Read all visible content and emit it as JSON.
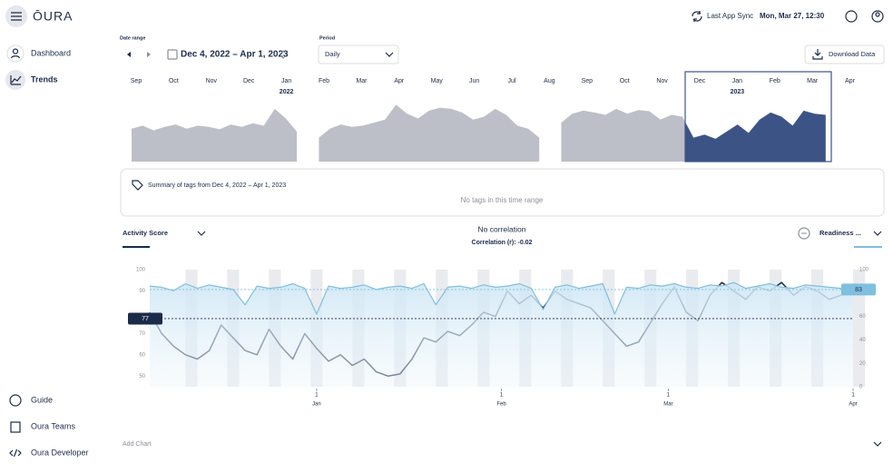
{
  "header": {
    "logo": "ŌURA",
    "sync_label": "Last App Sync",
    "sync_time": "Mon, Mar 27, 12:30"
  },
  "sidebar": {
    "top": [
      "Dashboard",
      "Trends"
    ],
    "bottom": [
      "Guide",
      "Oura Teams",
      "Oura Developer"
    ]
  },
  "controls": {
    "date_range_label": "Date range",
    "date_range": "Dec 4, 2022 – Apr 1, 2023",
    "period_label": "Period",
    "period": "Daily",
    "download": "Download Data"
  },
  "tags": {
    "title": "Summary of tags from Dec 4, 2022 – Apr 1, 2023",
    "empty": "No tags in this time range"
  },
  "add_chart": "Add Chart",
  "chart_data": [
    {
      "type": "area",
      "x_labels": [
        "Sep",
        "Oct",
        "Nov",
        "Dec",
        "Jan",
        "Feb",
        "Mar",
        "Apr",
        "May",
        "Jun",
        "Jul",
        "Aug",
        "Sep",
        "Oct",
        "Nov",
        "Dec",
        "Jan",
        "Feb",
        "Mar",
        "Apr"
      ],
      "years": [
        "2022",
        "2023"
      ],
      "color": "#bcbfc7",
      "selected_color": "#3c5485",
      "values": [
        55,
        60,
        52,
        58,
        62,
        55,
        60,
        58,
        54,
        62,
        58,
        64,
        60,
        88,
        72,
        50,
        null,
        40,
        55,
        62,
        58,
        60,
        65,
        70,
        95,
        80,
        72,
        85,
        90,
        88,
        82,
        70,
        75,
        88,
        78,
        60,
        55,
        40,
        null,
        65,
        80,
        85,
        82,
        78,
        88,
        80,
        86,
        84,
        70,
        78,
        75,
        40,
        45,
        38,
        50,
        62,
        48,
        70,
        82,
        75,
        60,
        85,
        80,
        78
      ]
    },
    {
      "type": "line",
      "title": "No correlation",
      "subtitle": "Correlation (r): -0.02",
      "x": [
        "2022-12-04",
        "2022-12-06",
        "2022-12-08",
        "2022-12-10",
        "2022-12-12",
        "2022-12-14",
        "2022-12-16",
        "2022-12-18",
        "2022-12-20",
        "2022-12-22",
        "2022-12-24",
        "2022-12-26",
        "2022-12-28",
        "2022-12-30",
        "2023-01-01",
        "2023-01-03",
        "2023-01-05",
        "2023-01-07",
        "2023-01-09",
        "2023-01-11",
        "2023-01-13",
        "2023-01-15",
        "2023-01-17",
        "2023-01-19",
        "2023-01-21",
        "2023-01-23",
        "2023-01-25",
        "2023-01-27",
        "2023-01-29",
        "2023-01-31",
        "2023-02-02",
        "2023-02-04",
        "2023-02-06",
        "2023-02-08",
        "2023-02-10",
        "2023-02-12",
        "2023-02-14",
        "2023-02-16",
        "2023-02-18",
        "2023-02-20",
        "2023-02-22",
        "2023-02-24",
        "2023-02-26",
        "2023-02-28",
        "2023-03-02",
        "2023-03-04",
        "2023-03-06",
        "2023-03-08",
        "2023-03-10",
        "2023-03-12",
        "2023-03-14",
        "2023-03-16",
        "2023-03-18",
        "2023-03-20",
        "2023-03-22",
        "2023-03-24",
        "2023-03-26",
        "2023-03-28",
        "2023-03-30",
        "2023-04-01"
      ],
      "xticks": [
        {
          "value": "2023-01-01",
          "label": "1"
        },
        {
          "value": "2023-02-01",
          "label": "1"
        },
        {
          "value": "2023-03-01",
          "label": "1"
        },
        {
          "value": "2023-04-01",
          "label": "1"
        }
      ],
      "xtick_months": [
        "Jan",
        "Feb",
        "Mar",
        "Apr"
      ],
      "ylim": [
        45,
        100
      ],
      "yticks": [
        50,
        60,
        70,
        90,
        100
      ],
      "y2lim": [
        0,
        100
      ],
      "y2ticks": [
        0,
        20,
        40,
        60,
        100
      ],
      "series": [
        {
          "name": "Activity Score",
          "color": "#1c2b4a",
          "average": 77,
          "values": [
            80,
            70,
            64,
            60,
            58,
            62,
            74,
            68,
            62,
            60,
            72,
            64,
            58,
            70,
            63,
            57,
            60,
            55,
            58,
            52,
            50,
            51,
            58,
            68,
            66,
            71,
            69,
            74,
            80,
            78,
            90,
            84,
            88,
            82,
            90,
            86,
            84,
            82,
            76,
            70,
            64,
            66,
            75,
            84,
            92,
            80,
            76,
            88,
            94,
            90,
            86,
            92,
            90,
            94,
            88,
            92,
            90,
            86,
            88,
            89
          ]
        },
        {
          "name": "Readiness ...",
          "color": "#7fbfe0",
          "axis": "y2",
          "average": 83,
          "values": [
            86,
            85,
            82,
            88,
            84,
            87,
            85,
            83,
            70,
            86,
            84,
            85,
            88,
            84,
            62,
            86,
            84,
            85,
            87,
            83,
            85,
            86,
            84,
            88,
            70,
            85,
            86,
            84,
            87,
            85,
            86,
            88,
            84,
            66,
            85,
            87,
            84,
            86,
            88,
            62,
            85,
            84,
            87,
            86,
            88,
            85,
            84,
            87,
            86,
            89,
            84,
            86,
            88,
            85,
            84,
            87,
            86,
            85,
            84,
            83
          ]
        }
      ]
    }
  ]
}
